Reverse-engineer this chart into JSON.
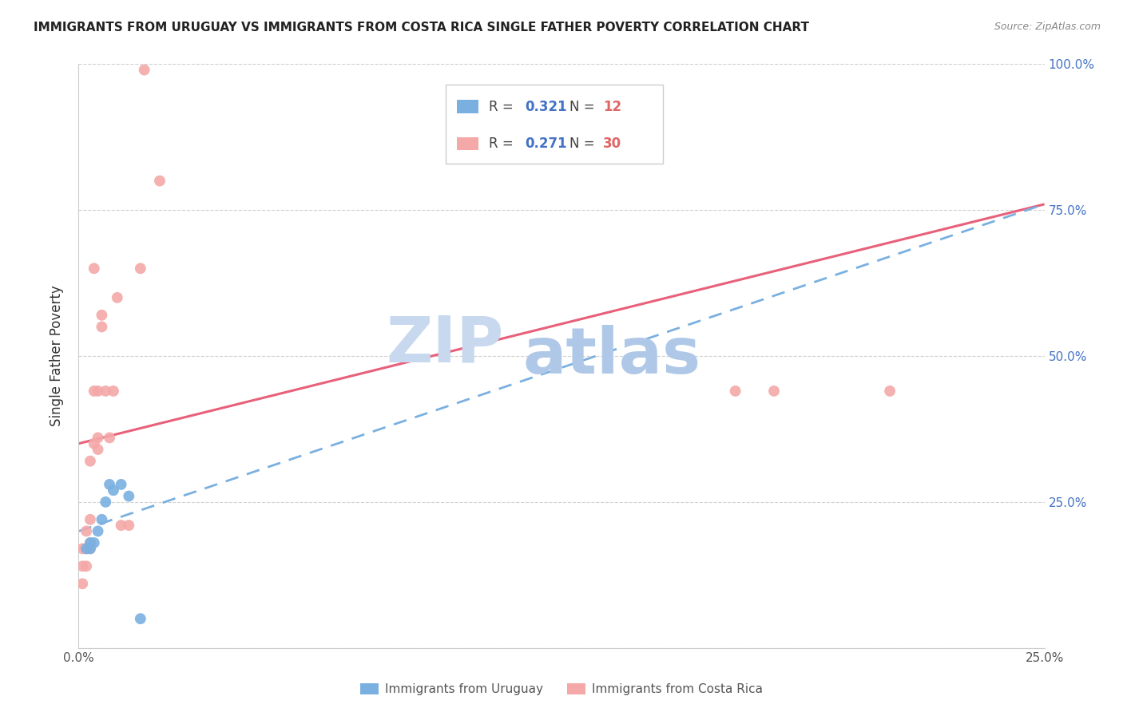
{
  "title": "IMMIGRANTS FROM URUGUAY VS IMMIGRANTS FROM COSTA RICA SINGLE FATHER POVERTY CORRELATION CHART",
  "source": "Source: ZipAtlas.com",
  "ylabel": "Single Father Poverty",
  "xlim": [
    0.0,
    0.25
  ],
  "ylim": [
    0.0,
    1.0
  ],
  "uruguay_color": "#7ab0e0",
  "costa_rica_color": "#f4a8a8",
  "legend_R_color": "#4472c4",
  "legend_N_color": "#e06666",
  "watermark_zip_color": "#c8d8ee",
  "watermark_atlas_color": "#b0c8e8",
  "uruguay_R": 0.321,
  "uruguay_N": 12,
  "costa_rica_R": 0.271,
  "costa_rica_N": 30,
  "pink_line_x0": 0.0,
  "pink_line_y0": 0.35,
  "pink_line_x1": 0.25,
  "pink_line_y1": 0.76,
  "blue_line_x0": 0.0,
  "blue_line_y0": 0.2,
  "blue_line_x1": 0.25,
  "blue_line_y1": 0.76,
  "uruguay_x": [
    0.002,
    0.003,
    0.003,
    0.004,
    0.005,
    0.006,
    0.007,
    0.008,
    0.009,
    0.011,
    0.013,
    0.016
  ],
  "uruguay_y": [
    0.17,
    0.17,
    0.18,
    0.18,
    0.2,
    0.22,
    0.25,
    0.28,
    0.27,
    0.28,
    0.26,
    0.05
  ],
  "costa_rica_x": [
    0.001,
    0.001,
    0.001,
    0.002,
    0.002,
    0.002,
    0.003,
    0.003,
    0.003,
    0.003,
    0.004,
    0.004,
    0.004,
    0.005,
    0.005,
    0.005,
    0.006,
    0.006,
    0.007,
    0.008,
    0.009,
    0.01,
    0.011,
    0.013,
    0.016,
    0.017,
    0.021,
    0.17,
    0.18,
    0.21
  ],
  "costa_rica_y": [
    0.17,
    0.14,
    0.11,
    0.17,
    0.14,
    0.2,
    0.32,
    0.22,
    0.18,
    0.17,
    0.35,
    0.44,
    0.65,
    0.34,
    0.44,
    0.36,
    0.57,
    0.55,
    0.44,
    0.36,
    0.44,
    0.6,
    0.21,
    0.21,
    0.65,
    0.99,
    0.8,
    0.44,
    0.44,
    0.44
  ]
}
